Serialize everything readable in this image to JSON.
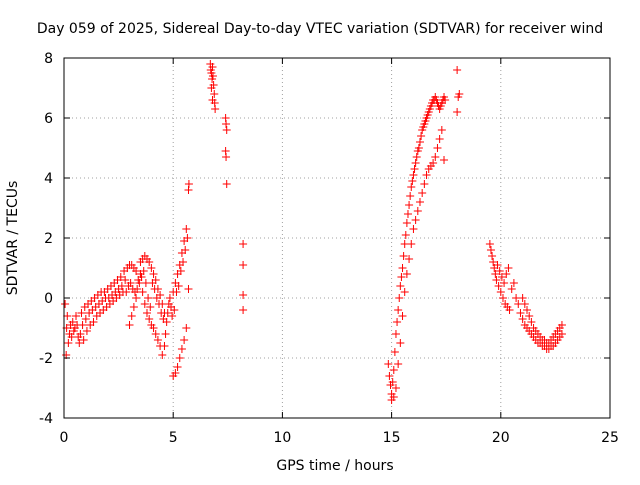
{
  "chart_data": {
    "type": "scatter",
    "title": "Day 059 of 2025, Sidereal Day-to-day VTEC variation (SDTVAR) for receiver wind",
    "xlabel": "GPS time / hours",
    "ylabel": "SDTVAR / TECUs",
    "xlim": [
      0,
      25
    ],
    "ylim": [
      -4,
      8
    ],
    "xticks": [
      "0",
      "5",
      "10",
      "15",
      "20",
      "25"
    ],
    "yticks": [
      "-4",
      "-2",
      "0",
      "2",
      "4",
      "6",
      "8"
    ],
    "grid": true,
    "marker": "+",
    "color": "#ff0000",
    "series": [
      {
        "name": "SDTVAR",
        "points": [
          [
            0.05,
            -0.2
          ],
          [
            0.1,
            -1.9
          ],
          [
            0.12,
            -1.0
          ],
          [
            0.15,
            -0.6
          ],
          [
            0.2,
            -1.5
          ],
          [
            0.25,
            -1.2
          ],
          [
            0.3,
            -0.9
          ],
          [
            0.35,
            -1.3
          ],
          [
            0.4,
            -0.8
          ],
          [
            0.45,
            -1.1
          ],
          [
            0.5,
            -1.0
          ],
          [
            0.55,
            -0.6
          ],
          [
            0.6,
            -0.9
          ],
          [
            0.65,
            -1.3
          ],
          [
            0.7,
            -1.5
          ],
          [
            0.75,
            -1.2
          ],
          [
            0.8,
            -0.5
          ],
          [
            0.85,
            -0.9
          ],
          [
            0.9,
            -1.4
          ],
          [
            0.95,
            -0.3
          ],
          [
            1.0,
            -0.7
          ],
          [
            1.05,
            -1.1
          ],
          [
            1.1,
            -0.2
          ],
          [
            1.15,
            -0.5
          ],
          [
            1.2,
            -0.9
          ],
          [
            1.25,
            -0.1
          ],
          [
            1.3,
            -0.4
          ],
          [
            1.35,
            -0.8
          ],
          [
            1.4,
            0.0
          ],
          [
            1.45,
            -0.3
          ],
          [
            1.5,
            -0.6
          ],
          [
            1.55,
            0.1
          ],
          [
            1.6,
            -0.2
          ],
          [
            1.65,
            -0.5
          ],
          [
            1.7,
            0.2
          ],
          [
            1.75,
            -0.1
          ],
          [
            1.8,
            -0.4
          ],
          [
            1.85,
            0.2
          ],
          [
            1.9,
            0.0
          ],
          [
            1.95,
            -0.3
          ],
          [
            2.0,
            0.3
          ],
          [
            2.05,
            0.0
          ],
          [
            2.1,
            -0.2
          ],
          [
            2.15,
            0.4
          ],
          [
            2.2,
            0.1
          ],
          [
            2.25,
            -0.1
          ],
          [
            2.3,
            0.5
          ],
          [
            2.35,
            0.2
          ],
          [
            2.4,
            0.0
          ],
          [
            2.45,
            0.6
          ],
          [
            2.5,
            0.3
          ],
          [
            2.55,
            0.1
          ],
          [
            2.6,
            0.7
          ],
          [
            2.65,
            0.4
          ],
          [
            2.7,
            0.2
          ],
          [
            2.75,
            0.9
          ],
          [
            2.8,
            0.6
          ],
          [
            2.85,
            0.2
          ],
          [
            2.9,
            1.0
          ],
          [
            2.95,
            0.4
          ],
          [
            3.0,
            1.1
          ],
          [
            3.0,
            -0.9
          ],
          [
            3.05,
            0.5
          ],
          [
            3.1,
            1.1
          ],
          [
            3.1,
            -0.6
          ],
          [
            3.15,
            0.3
          ],
          [
            3.2,
            1.0
          ],
          [
            3.2,
            -0.3
          ],
          [
            3.25,
            0.2
          ],
          [
            3.3,
            0.9
          ],
          [
            3.3,
            0.0
          ],
          [
            3.35,
            0.3
          ],
          [
            3.4,
            0.6
          ],
          [
            3.45,
            0.5
          ],
          [
            3.5,
            1.2
          ],
          [
            3.5,
            0.8
          ],
          [
            3.55,
            0.7
          ],
          [
            3.6,
            1.3
          ],
          [
            3.6,
            0.2
          ],
          [
            3.65,
            0.9
          ],
          [
            3.7,
            1.4
          ],
          [
            3.7,
            -0.2
          ],
          [
            3.75,
            0.5
          ],
          [
            3.8,
            1.3
          ],
          [
            3.8,
            -0.5
          ],
          [
            3.85,
            0.0
          ],
          [
            3.9,
            1.2
          ],
          [
            3.9,
            -0.7
          ],
          [
            3.95,
            -0.3
          ],
          [
            4.0,
            1.0
          ],
          [
            4.0,
            -0.9
          ],
          [
            4.05,
            0.5
          ],
          [
            4.1,
            0.8
          ],
          [
            4.1,
            -1.0
          ],
          [
            4.15,
            0.3
          ],
          [
            4.2,
            0.6
          ],
          [
            4.2,
            -1.2
          ],
          [
            4.25,
            0.0
          ],
          [
            4.3,
            0.3
          ],
          [
            4.3,
            -1.4
          ],
          [
            4.35,
            -0.2
          ],
          [
            4.4,
            0.1
          ],
          [
            4.4,
            -1.6
          ],
          [
            4.45,
            -0.5
          ],
          [
            4.5,
            -0.2
          ],
          [
            4.5,
            -1.9
          ],
          [
            4.55,
            -0.7
          ],
          [
            4.6,
            -0.5
          ],
          [
            4.6,
            -1.6
          ],
          [
            4.65,
            -1.2
          ],
          [
            4.7,
            -0.8
          ],
          [
            4.75,
            -0.5
          ],
          [
            4.8,
            -0.2
          ],
          [
            4.85,
            0.0
          ],
          [
            4.9,
            -0.3
          ],
          [
            4.95,
            -0.6
          ],
          [
            5.0,
            -2.6
          ],
          [
            5.0,
            0.2
          ],
          [
            5.05,
            -0.4
          ],
          [
            5.1,
            -2.5
          ],
          [
            5.1,
            0.5
          ],
          [
            5.15,
            0.2
          ],
          [
            5.2,
            -2.3
          ],
          [
            5.2,
            0.8
          ],
          [
            5.25,
            0.4
          ],
          [
            5.3,
            -2.0
          ],
          [
            5.3,
            1.1
          ],
          [
            5.35,
            0.9
          ],
          [
            5.4,
            -1.7
          ],
          [
            5.4,
            1.5
          ],
          [
            5.45,
            1.2
          ],
          [
            5.5,
            -1.4
          ],
          [
            5.5,
            1.9
          ],
          [
            5.55,
            1.6
          ],
          [
            5.6,
            -1.0
          ],
          [
            5.6,
            2.3
          ],
          [
            5.65,
            2.0
          ],
          [
            5.7,
            0.3
          ],
          [
            5.7,
            3.6
          ],
          [
            5.72,
            3.8
          ],
          [
            6.7,
            7.8
          ],
          [
            6.72,
            7.6
          ],
          [
            6.75,
            7.5
          ],
          [
            6.78,
            7.3
          ],
          [
            6.8,
            7.7
          ],
          [
            6.82,
            7.4
          ],
          [
            6.85,
            7.1
          ],
          [
            6.88,
            6.8
          ],
          [
            6.9,
            6.5
          ],
          [
            6.92,
            6.3
          ],
          [
            6.75,
            7.0
          ],
          [
            6.8,
            6.6
          ],
          [
            7.4,
            6.0
          ],
          [
            7.42,
            5.8
          ],
          [
            7.45,
            5.6
          ],
          [
            7.4,
            4.9
          ],
          [
            7.42,
            4.7
          ],
          [
            7.45,
            3.8
          ],
          [
            8.2,
            1.8
          ],
          [
            8.2,
            1.1
          ],
          [
            8.2,
            0.1
          ],
          [
            8.2,
            -0.4
          ],
          [
            14.85,
            -2.2
          ],
          [
            14.9,
            -2.6
          ],
          [
            14.95,
            -2.9
          ],
          [
            15.0,
            -3.2
          ],
          [
            15.0,
            -3.4
          ],
          [
            15.05,
            -2.8
          ],
          [
            15.1,
            -2.4
          ],
          [
            15.1,
            -3.3
          ],
          [
            15.15,
            -1.8
          ],
          [
            15.2,
            -1.2
          ],
          [
            15.2,
            -3.0
          ],
          [
            15.25,
            -0.8
          ],
          [
            15.3,
            -0.4
          ],
          [
            15.3,
            -2.2
          ],
          [
            15.35,
            0.0
          ],
          [
            15.4,
            0.4
          ],
          [
            15.4,
            -1.5
          ],
          [
            15.45,
            0.7
          ],
          [
            15.5,
            1.0
          ],
          [
            15.5,
            -0.6
          ],
          [
            15.55,
            1.4
          ],
          [
            15.6,
            1.8
          ],
          [
            15.6,
            0.2
          ],
          [
            15.65,
            2.1
          ],
          [
            15.7,
            2.5
          ],
          [
            15.7,
            0.8
          ],
          [
            15.75,
            2.8
          ],
          [
            15.8,
            3.1
          ],
          [
            15.8,
            1.3
          ],
          [
            15.85,
            3.4
          ],
          [
            15.9,
            3.7
          ],
          [
            15.9,
            1.8
          ],
          [
            15.95,
            3.9
          ],
          [
            16.0,
            4.1
          ],
          [
            16.0,
            2.3
          ],
          [
            16.05,
            4.3
          ],
          [
            16.1,
            4.5
          ],
          [
            16.1,
            2.6
          ],
          [
            16.15,
            4.7
          ],
          [
            16.2,
            4.9
          ],
          [
            16.2,
            2.9
          ],
          [
            16.25,
            5.0
          ],
          [
            16.3,
            5.2
          ],
          [
            16.3,
            3.2
          ],
          [
            16.35,
            5.4
          ],
          [
            16.4,
            5.6
          ],
          [
            16.4,
            3.5
          ],
          [
            16.45,
            5.7
          ],
          [
            16.5,
            5.8
          ],
          [
            16.5,
            3.8
          ],
          [
            16.55,
            5.9
          ],
          [
            16.6,
            6.0
          ],
          [
            16.6,
            4.1
          ],
          [
            16.65,
            6.1
          ],
          [
            16.7,
            6.2
          ],
          [
            16.7,
            4.3
          ],
          [
            16.75,
            6.3
          ],
          [
            16.8,
            6.4
          ],
          [
            16.8,
            4.4
          ],
          [
            16.85,
            6.5
          ],
          [
            16.9,
            6.6
          ],
          [
            16.9,
            4.5
          ],
          [
            16.95,
            6.6
          ],
          [
            17.0,
            6.7
          ],
          [
            17.0,
            4.7
          ],
          [
            17.05,
            6.6
          ],
          [
            17.1,
            6.5
          ],
          [
            17.1,
            5.0
          ],
          [
            17.15,
            6.4
          ],
          [
            17.2,
            6.3
          ],
          [
            17.2,
            5.3
          ],
          [
            17.25,
            6.4
          ],
          [
            17.3,
            6.5
          ],
          [
            17.3,
            5.6
          ],
          [
            17.35,
            6.6
          ],
          [
            17.4,
            6.7
          ],
          [
            17.4,
            4.6
          ],
          [
            17.45,
            6.6
          ],
          [
            18.0,
            6.2
          ],
          [
            18.05,
            6.7
          ],
          [
            18.1,
            6.8
          ],
          [
            18.0,
            7.6
          ],
          [
            19.5,
            1.8
          ],
          [
            19.55,
            1.6
          ],
          [
            19.6,
            1.4
          ],
          [
            19.65,
            1.2
          ],
          [
            19.7,
            1.0
          ],
          [
            19.75,
            0.8
          ],
          [
            19.8,
            0.6
          ],
          [
            19.85,
            1.1
          ],
          [
            19.9,
            0.4
          ],
          [
            19.95,
            0.9
          ],
          [
            20.0,
            0.2
          ],
          [
            20.05,
            0.7
          ],
          [
            20.1,
            0.0
          ],
          [
            20.15,
            0.5
          ],
          [
            20.2,
            -0.2
          ],
          [
            20.25,
            0.8
          ],
          [
            20.3,
            -0.3
          ],
          [
            20.35,
            1.0
          ],
          [
            20.4,
            -0.4
          ],
          [
            20.5,
            0.3
          ],
          [
            20.6,
            0.5
          ],
          [
            20.7,
            0.0
          ],
          [
            20.8,
            -0.2
          ],
          [
            20.9,
            -0.5
          ],
          [
            21.0,
            -0.7
          ],
          [
            21.0,
            0.0
          ],
          [
            21.1,
            -0.9
          ],
          [
            21.1,
            -0.2
          ],
          [
            21.2,
            -1.0
          ],
          [
            21.2,
            -0.4
          ],
          [
            21.3,
            -1.1
          ],
          [
            21.3,
            -0.6
          ],
          [
            21.4,
            -1.2
          ],
          [
            21.4,
            -0.8
          ],
          [
            21.5,
            -1.3
          ],
          [
            21.5,
            -1.0
          ],
          [
            21.6,
            -1.4
          ],
          [
            21.6,
            -1.1
          ],
          [
            21.7,
            -1.5
          ],
          [
            21.7,
            -1.2
          ],
          [
            21.8,
            -1.5
          ],
          [
            21.8,
            -1.3
          ],
          [
            21.9,
            -1.6
          ],
          [
            21.9,
            -1.4
          ],
          [
            22.0,
            -1.6
          ],
          [
            22.0,
            -1.4
          ],
          [
            22.1,
            -1.7
          ],
          [
            22.1,
            -1.5
          ],
          [
            22.2,
            -1.7
          ],
          [
            22.2,
            -1.5
          ],
          [
            22.3,
            -1.6
          ],
          [
            22.3,
            -1.4
          ],
          [
            22.4,
            -1.6
          ],
          [
            22.4,
            -1.3
          ],
          [
            22.5,
            -1.5
          ],
          [
            22.5,
            -1.2
          ],
          [
            22.6,
            -1.4
          ],
          [
            22.6,
            -1.1
          ],
          [
            22.7,
            -1.3
          ],
          [
            22.7,
            -1.0
          ],
          [
            22.8,
            -1.2
          ],
          [
            22.8,
            -0.9
          ]
        ]
      }
    ]
  }
}
